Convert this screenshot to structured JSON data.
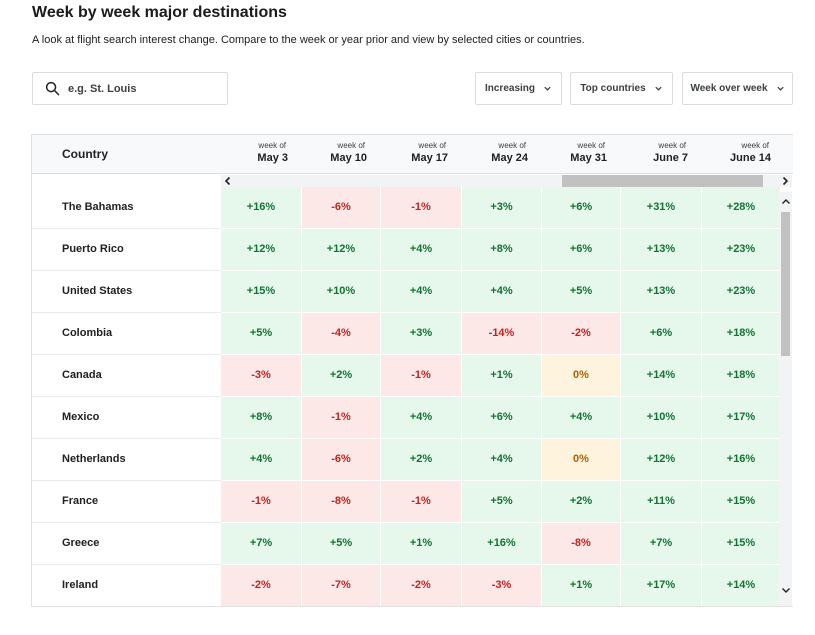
{
  "page": {
    "title": "Week by week major destinations",
    "subtitle": "A look at flight search interest change. Compare to the week or year prior and view by selected cities or countries."
  },
  "search": {
    "placeholder": "e.g. St. Louis",
    "value": ""
  },
  "filters": {
    "sort": "Increasing",
    "scope": "Top countries",
    "comparison": "Week over week"
  },
  "table": {
    "country_header": "Country",
    "week_prefix": "week of",
    "weeks": [
      "May 3",
      "May 10",
      "May 17",
      "May 24",
      "May 31",
      "June 7",
      "June 14"
    ],
    "rows": [
      {
        "country": "The Bahamas",
        "values": [
          "+16%",
          "-6%",
          "-1%",
          "+3%",
          "+6%",
          "+31%",
          "+28%"
        ]
      },
      {
        "country": "Puerto Rico",
        "values": [
          "+12%",
          "+12%",
          "+4%",
          "+8%",
          "+6%",
          "+13%",
          "+23%"
        ]
      },
      {
        "country": "United States",
        "values": [
          "+15%",
          "+10%",
          "+4%",
          "+4%",
          "+5%",
          "+13%",
          "+23%"
        ]
      },
      {
        "country": "Colombia",
        "values": [
          "+5%",
          "-4%",
          "+3%",
          "-14%",
          "-2%",
          "+6%",
          "+18%"
        ]
      },
      {
        "country": "Canada",
        "values": [
          "-3%",
          "+2%",
          "-1%",
          "+1%",
          "0%",
          "+14%",
          "+18%"
        ]
      },
      {
        "country": "Mexico",
        "values": [
          "+8%",
          "-1%",
          "+4%",
          "+6%",
          "+4%",
          "+10%",
          "+17%"
        ]
      },
      {
        "country": "Netherlands",
        "values": [
          "+4%",
          "-6%",
          "+2%",
          "+4%",
          "0%",
          "+12%",
          "+16%"
        ]
      },
      {
        "country": "France",
        "values": [
          "-1%",
          "-8%",
          "-1%",
          "+5%",
          "+2%",
          "+11%",
          "+15%"
        ]
      },
      {
        "country": "Greece",
        "values": [
          "+7%",
          "+5%",
          "+1%",
          "+16%",
          "-8%",
          "+7%",
          "+15%"
        ]
      },
      {
        "country": "Ireland",
        "values": [
          "-2%",
          "-7%",
          "-2%",
          "-3%",
          "+1%",
          "+17%",
          "+14%"
        ]
      }
    ]
  },
  "icons": {
    "search": "search-icon",
    "dropdown": "chevron-down-icon",
    "scroll_left": "chevron-left-icon",
    "scroll_right": "chevron-right-icon",
    "scroll_up": "chevron-up-icon",
    "scroll_down": "chevron-down-icon"
  },
  "colors": {
    "positive_bg": "#e6f7ec",
    "positive_text": "#137333",
    "negative_bg": "#fce8e6",
    "negative_text": "#c5221f",
    "zero_bg": "#fef3dd",
    "zero_text": "#b06000"
  }
}
